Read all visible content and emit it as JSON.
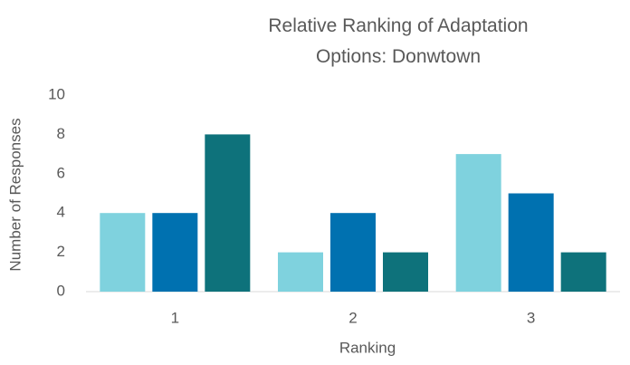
{
  "chart_data": {
    "type": "bar",
    "title": "Relative Ranking of Adaptation Options: Donwtown",
    "x_label": "Ranking",
    "y_label": "Number of Responses",
    "categories": [
      "1",
      "2",
      "3"
    ],
    "series": [
      {
        "color": "#7fd2de",
        "values": [
          4,
          2,
          7
        ]
      },
      {
        "color": "#0071b0",
        "values": [
          4,
          4,
          5
        ]
      },
      {
        "color": "#0e727b",
        "values": [
          8,
          2,
          2
        ]
      }
    ],
    "ylim": [
      0,
      10
    ],
    "yticks": [
      0,
      2,
      4,
      6,
      8,
      10
    ],
    "grid": false
  }
}
